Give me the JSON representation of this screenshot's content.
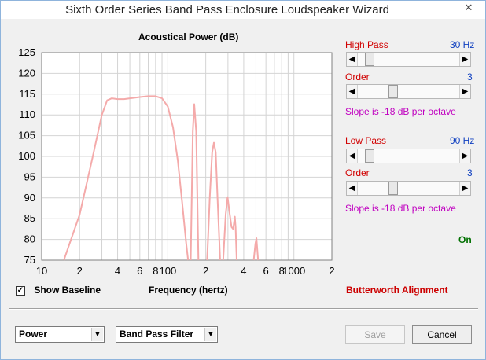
{
  "window": {
    "title": "Sixth Order Series Band Pass Enclosure Loudspeaker Wizard",
    "close_glyph": "✕"
  },
  "chart_data": {
    "type": "line",
    "title": "Acoustical Power (dB)",
    "xlabel": "Frequency (hertz)",
    "ylabel": "",
    "x_scale": "log",
    "xlim": [
      10,
      2000
    ],
    "ylim": [
      75,
      125
    ],
    "y_ticks": [
      "125",
      "120",
      "115",
      "110",
      "105",
      "100",
      "95",
      "90",
      "85",
      "80",
      "75"
    ],
    "x_ticks": [
      "10",
      "2",
      "4",
      "6",
      "8",
      "100",
      "2",
      "4",
      "6",
      "8",
      "1000",
      "2"
    ],
    "grid": true,
    "series": [
      {
        "color": "#f4aaaa",
        "segments": [
          {
            "x": [
              15,
              20,
              25,
              30,
              33,
              36,
              40,
              45,
              50,
              60,
              70,
              80,
              90,
              100,
              110,
              120,
              130,
              140,
              145
            ],
            "y": [
              75,
              86,
              99,
              110,
              113.5,
              114,
              113.8,
              113.8,
              114,
              114.3,
              114.5,
              114.5,
              114,
              112,
              107,
              99,
              89,
              79,
              75
            ]
          },
          {
            "x": [
              152,
              158,
              162,
              168,
              175
            ],
            "y": [
              75,
              106,
              112.6,
              106,
              75
            ]
          },
          {
            "x": [
              205,
              215,
              225,
              232,
              240,
              248,
              260
            ],
            "y": [
              75,
              90,
              101,
              103.3,
              101,
              90,
              75
            ]
          },
          {
            "x": [
              275,
              288,
              298,
              310,
              320,
              330,
              340,
              345,
              352
            ],
            "y": [
              75,
              86,
              90.2,
              86,
              83,
              82.5,
              85.5,
              83,
              75
            ]
          },
          {
            "x": [
              480,
              495,
              505,
              520
            ],
            "y": [
              75,
              79,
              80.3,
              75
            ]
          }
        ]
      }
    ]
  },
  "controls": {
    "high_pass": {
      "label": "High Pass",
      "value": "30 Hz",
      "slider_fraction": 0.08
    },
    "high_order": {
      "label": "Order",
      "value": "3",
      "slider_fraction": 0.33
    },
    "high_slope": "Slope is -18 dB per octave",
    "low_pass": {
      "label": "Low Pass",
      "value": "90 Hz",
      "slider_fraction": 0.08
    },
    "low_order": {
      "label": "Order",
      "value": "3",
      "slider_fraction": 0.33
    },
    "low_slope": "Slope is -18 dB per octave",
    "status": "On",
    "alignment": "Butterworth Alignment",
    "arrow_left": "◀",
    "arrow_right": "▶"
  },
  "baseline": {
    "label": "Show Baseline",
    "checked": true,
    "check_glyph": "✓"
  },
  "bottom": {
    "view_select": "Power",
    "filter_select": "Band Pass Filter",
    "caret": "▼",
    "save": "Save",
    "cancel": "Cancel"
  }
}
